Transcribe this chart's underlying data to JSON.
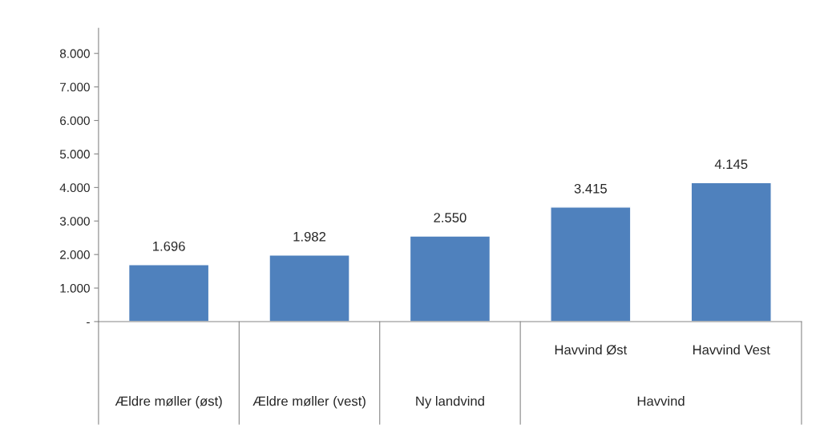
{
  "chart_data": {
    "type": "bar",
    "categories": [
      "Ældre møller (øst)",
      "Ældre møller (vest)",
      "Ny landvind",
      "Havvind Øst",
      "Havvind Vest"
    ],
    "values": [
      1696,
      1982,
      2550,
      3415,
      4145
    ],
    "value_labels": [
      "1.696",
      "1.982",
      "2.550",
      "3.415",
      "4.145"
    ],
    "color": "#4f81bd",
    "ylim": [
      0,
      8750
    ],
    "yticks": [
      {
        "value": 0,
        "label": "-"
      },
      {
        "value": 1000,
        "label": "1.000"
      },
      {
        "value": 2000,
        "label": "2.000"
      },
      {
        "value": 3000,
        "label": "3.000"
      },
      {
        "value": 4000,
        "label": "4.000"
      },
      {
        "value": 5000,
        "label": "5.000"
      },
      {
        "value": 6000,
        "label": "6.000"
      },
      {
        "value": 7000,
        "label": "7.000"
      },
      {
        "value": 8000,
        "label": "8.000"
      }
    ],
    "annotations": [
      "Havvind"
    ],
    "grid": false,
    "legend": false
  }
}
